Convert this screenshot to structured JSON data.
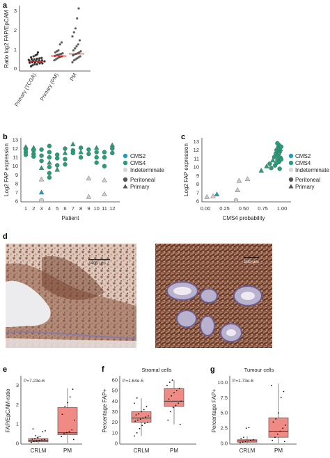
{
  "panels": {
    "a": {
      "label": "a",
      "ylabel": "Ratio log2 FAP/EpCAM",
      "yticks": [
        "0",
        "1",
        "2",
        "3"
      ],
      "categories": [
        "Primary (TCGA)",
        "Primary (PM)",
        "PM"
      ]
    },
    "b": {
      "label": "b",
      "ylabel": "Log2 FAP expression",
      "xlabel": "Patient",
      "yticks": [
        "6",
        "7",
        "8",
        "9",
        "10",
        "11",
        "12",
        "13"
      ],
      "xticks": [
        "1",
        "2",
        "3",
        "4",
        "5",
        "6",
        "7",
        "8",
        "9",
        "10",
        "11",
        "12"
      ]
    },
    "c": {
      "label": "c",
      "ylabel": "Log2 FAP expression",
      "xlabel": "CMS4 probability",
      "yticks": [
        "6",
        "7",
        "8",
        "9",
        "10",
        "11",
        "12",
        "13"
      ],
      "xticks": [
        "0.00",
        "0.25",
        "0.50",
        "0.75",
        "1.00"
      ]
    },
    "legend": {
      "colour_items": [
        "CMS2",
        "CMS4",
        "Indeterminate"
      ],
      "shape_items": [
        "Peritoneal",
        "Primary"
      ]
    },
    "d": {
      "label": "d",
      "scalebar_left": "400 μm",
      "scalebar_right": "100 μm"
    },
    "e": {
      "label": "e",
      "ylabel": "FAP/EpCAM-ratio",
      "pvalue": "P=7.23e-6",
      "yticks": [
        "0",
        "1",
        "2",
        "3"
      ],
      "categories": [
        "CRLM",
        "PM"
      ]
    },
    "f": {
      "label": "f",
      "title": "Stromal cells",
      "ylabel": "Percentage FAP+",
      "pvalue": "P=1.64e-5",
      "yticks": [
        "0",
        "10",
        "20",
        "30",
        "40",
        "50",
        "60"
      ],
      "categories": [
        "CRLM",
        "PM"
      ]
    },
    "g": {
      "label": "g",
      "title": "Tumour cells",
      "ylabel": "Percentage FAP+",
      "pvalue": "P=1.73e-6",
      "yticks": [
        "0.0",
        "2.5",
        "5.0",
        "7.5",
        "10.0"
      ],
      "categories": [
        "CRLM",
        "PM"
      ]
    }
  },
  "colors": {
    "cms2": "#1e9fc2",
    "cms4": "#23a079",
    "indeterminate": "#cccccc",
    "median_line": "#e03030",
    "box_fill": "#ef8a84",
    "tissue_dark": "#7a4a36",
    "tissue_light": "#c4a08c"
  },
  "chart_data": [
    {
      "panel": "a",
      "type": "scatter",
      "categories": [
        "Primary (TCGA)",
        "Primary (PM)",
        "PM"
      ],
      "medians": [
        0.45,
        0.72,
        0.82
      ],
      "series": [
        {
          "category": "Primary (TCGA)",
          "values": [
            0.2,
            0.25,
            0.3,
            0.3,
            0.35,
            0.35,
            0.38,
            0.4,
            0.4,
            0.42,
            0.43,
            0.45,
            0.45,
            0.46,
            0.48,
            0.5,
            0.5,
            0.52,
            0.55,
            0.55,
            0.58,
            0.6,
            0.62,
            0.65,
            0.7,
            0.75,
            0.8,
            0.9
          ]
        },
        {
          "category": "Primary (PM)",
          "values": [
            0.5,
            0.55,
            0.6,
            0.65,
            0.68,
            0.7,
            0.72,
            0.75,
            0.78,
            0.8,
            0.82,
            0.85,
            0.9,
            0.95,
            1.0,
            1.3,
            1.4
          ]
        },
        {
          "category": "PM",
          "values": [
            0.4,
            0.5,
            0.55,
            0.6,
            0.65,
            0.7,
            0.75,
            0.8,
            0.82,
            0.85,
            0.9,
            0.95,
            1.0,
            1.1,
            1.2,
            1.3,
            1.5,
            1.7,
            1.9,
            2.1,
            2.6,
            3.1
          ]
        }
      ],
      "ylim": [
        0,
        3.4
      ]
    },
    {
      "panel": "b",
      "type": "scatter",
      "ylim": [
        6,
        13
      ],
      "points": [
        {
          "x": 1,
          "y": 12.2,
          "c": "cms4",
          "s": "triangle"
        },
        {
          "x": 1,
          "y": 11.9,
          "c": "cms4",
          "s": "circle"
        },
        {
          "x": 1,
          "y": 11.6,
          "c": "cms4",
          "s": "circle"
        },
        {
          "x": 1,
          "y": 11.3,
          "c": "cms4",
          "s": "circle"
        },
        {
          "x": 2,
          "y": 12.1,
          "c": "cms4",
          "s": "triangle"
        },
        {
          "x": 2,
          "y": 11.8,
          "c": "cms4",
          "s": "circle"
        },
        {
          "x": 2,
          "y": 11.4,
          "c": "cms4",
          "s": "circle"
        },
        {
          "x": 2,
          "y": 11.1,
          "c": "cms4",
          "s": "circle"
        },
        {
          "x": 3,
          "y": 11.9,
          "c": "cms4",
          "s": "circle"
        },
        {
          "x": 3,
          "y": 11.2,
          "c": "cms4",
          "s": "circle"
        },
        {
          "x": 3,
          "y": 10.6,
          "c": "cms4",
          "s": "circle"
        },
        {
          "x": 3,
          "y": 9.8,
          "c": "cms4",
          "s": "triangle"
        },
        {
          "x": 3,
          "y": 8.5,
          "c": "indeterminate",
          "s": "triangle"
        },
        {
          "x": 3,
          "y": 7.0,
          "c": "cms2",
          "s": "triangle"
        },
        {
          "x": 3,
          "y": 6.1,
          "c": "indeterminate",
          "s": "circle"
        },
        {
          "x": 4,
          "y": 12.3,
          "c": "cms4",
          "s": "circle"
        },
        {
          "x": 4,
          "y": 11.6,
          "c": "cms4",
          "s": "circle"
        },
        {
          "x": 4,
          "y": 11.0,
          "c": "cms4",
          "s": "circle"
        },
        {
          "x": 4,
          "y": 10.4,
          "c": "cms4",
          "s": "triangle"
        },
        {
          "x": 4,
          "y": 9.9,
          "c": "cms4",
          "s": "circle"
        },
        {
          "x": 4,
          "y": 9.2,
          "c": "cms4",
          "s": "circle"
        },
        {
          "x": 4,
          "y": 8.7,
          "c": "cms4",
          "s": "circle"
        },
        {
          "x": 5,
          "y": 11.3,
          "c": "cms4",
          "s": "circle"
        },
        {
          "x": 5,
          "y": 10.9,
          "c": "cms4",
          "s": "circle"
        },
        {
          "x": 5,
          "y": 10.1,
          "c": "cms4",
          "s": "circle"
        },
        {
          "x": 5,
          "y": 9.6,
          "c": "cms4",
          "s": "triangle"
        },
        {
          "x": 6,
          "y": 12.0,
          "c": "cms4",
          "s": "circle"
        },
        {
          "x": 6,
          "y": 11.5,
          "c": "cms4",
          "s": "triangle"
        },
        {
          "x": 6,
          "y": 10.8,
          "c": "cms4",
          "s": "circle"
        },
        {
          "x": 6,
          "y": 10.2,
          "c": "cms4",
          "s": "circle"
        },
        {
          "x": 7,
          "y": 12.5,
          "c": "cms4",
          "s": "triangle"
        },
        {
          "x": 7,
          "y": 11.8,
          "c": "cms4",
          "s": "circle"
        },
        {
          "x": 7,
          "y": 11.5,
          "c": "cms4",
          "s": "circle"
        },
        {
          "x": 8,
          "y": 12.1,
          "c": "cms4",
          "s": "circle"
        },
        {
          "x": 8,
          "y": 11.6,
          "c": "cms4",
          "s": "triangle"
        },
        {
          "x": 8,
          "y": 11.0,
          "c": "cms4",
          "s": "circle"
        },
        {
          "x": 9,
          "y": 11.9,
          "c": "cms4",
          "s": "circle"
        },
        {
          "x": 9,
          "y": 11.4,
          "c": "cms4",
          "s": "circle"
        },
        {
          "x": 9,
          "y": 8.6,
          "c": "indeterminate",
          "s": "triangle"
        },
        {
          "x": 9,
          "y": 6.5,
          "c": "indeterminate",
          "s": "triangle"
        },
        {
          "x": 10,
          "y": 12.1,
          "c": "cms4",
          "s": "triangle"
        },
        {
          "x": 10,
          "y": 11.6,
          "c": "cms4",
          "s": "circle"
        },
        {
          "x": 10,
          "y": 11.0,
          "c": "cms4",
          "s": "circle"
        },
        {
          "x": 10,
          "y": 10.4,
          "c": "cms4",
          "s": "circle"
        },
        {
          "x": 11,
          "y": 11.6,
          "c": "cms4",
          "s": "circle"
        },
        {
          "x": 11,
          "y": 11.0,
          "c": "cms4",
          "s": "circle"
        },
        {
          "x": 11,
          "y": 10.0,
          "c": "cms4",
          "s": "circle"
        },
        {
          "x": 11,
          "y": 8.4,
          "c": "indeterminate",
          "s": "triangle"
        },
        {
          "x": 11,
          "y": 6.8,
          "c": "indeterminate",
          "s": "triangle"
        },
        {
          "x": 12,
          "y": 12.4,
          "c": "cms4",
          "s": "triangle"
        },
        {
          "x": 12,
          "y": 12.0,
          "c": "cms4",
          "s": "circle"
        },
        {
          "x": 12,
          "y": 11.5,
          "c": "cms4",
          "s": "circle"
        }
      ]
    },
    {
      "panel": "c",
      "type": "scatter",
      "ylim": [
        6,
        13.2
      ],
      "xlim": [
        0,
        1
      ],
      "points": [
        {
          "x": 0.02,
          "y": 6.5,
          "c": "indeterminate",
          "s": "triangle"
        },
        {
          "x": 0.1,
          "y": 6.6,
          "c": "indeterminate",
          "s": "triangle"
        },
        {
          "x": 0.15,
          "y": 6.8,
          "c": "cms2",
          "s": "triangle"
        },
        {
          "x": 0.4,
          "y": 6.1,
          "c": "indeterminate",
          "s": "circle"
        },
        {
          "x": 0.42,
          "y": 7.3,
          "c": "indeterminate",
          "s": "triangle"
        },
        {
          "x": 0.44,
          "y": 8.4,
          "c": "indeterminate",
          "s": "triangle"
        },
        {
          "x": 0.55,
          "y": 8.6,
          "c": "indeterminate",
          "s": "triangle"
        },
        {
          "x": 0.73,
          "y": 9.6,
          "c": "cms4",
          "s": "triangle"
        },
        {
          "x": 0.8,
          "y": 10.1,
          "c": "cms4",
          "s": "triangle"
        },
        {
          "x": 0.84,
          "y": 10.4,
          "c": "cms4",
          "s": "circle"
        },
        {
          "x": 0.86,
          "y": 9.9,
          "c": "cms4",
          "s": "circle"
        },
        {
          "x": 0.88,
          "y": 10.8,
          "c": "cms4",
          "s": "triangle"
        },
        {
          "x": 0.9,
          "y": 11.2,
          "c": "cms4",
          "s": "circle"
        },
        {
          "x": 0.91,
          "y": 10.2,
          "c": "cms4",
          "s": "circle"
        },
        {
          "x": 0.92,
          "y": 11.6,
          "c": "cms4",
          "s": "circle"
        },
        {
          "x": 0.93,
          "y": 12.0,
          "c": "cms4",
          "s": "circle"
        },
        {
          "x": 0.94,
          "y": 11.0,
          "c": "cms4",
          "s": "triangle"
        },
        {
          "x": 0.95,
          "y": 12.3,
          "c": "cms4",
          "s": "circle"
        },
        {
          "x": 0.95,
          "y": 11.4,
          "c": "cms4",
          "s": "circle"
        },
        {
          "x": 0.96,
          "y": 10.6,
          "c": "cms4",
          "s": "circle"
        },
        {
          "x": 0.96,
          "y": 12.6,
          "c": "cms4",
          "s": "circle"
        },
        {
          "x": 0.97,
          "y": 11.8,
          "c": "cms4",
          "s": "circle"
        },
        {
          "x": 0.97,
          "y": 9.8,
          "c": "cms4",
          "s": "circle"
        },
        {
          "x": 0.98,
          "y": 12.1,
          "c": "cms4",
          "s": "triangle"
        },
        {
          "x": 0.98,
          "y": 11.1,
          "c": "cms4",
          "s": "circle"
        },
        {
          "x": 0.99,
          "y": 12.4,
          "c": "cms4",
          "s": "circle"
        },
        {
          "x": 0.99,
          "y": 10.9,
          "c": "cms4",
          "s": "circle"
        },
        {
          "x": 0.93,
          "y": 10.5,
          "c": "cms4",
          "s": "circle"
        },
        {
          "x": 0.94,
          "y": 12.8,
          "c": "cms4",
          "s": "circle"
        },
        {
          "x": 0.96,
          "y": 11.7,
          "c": "cms4",
          "s": "triangle"
        }
      ]
    },
    {
      "panel": "e",
      "type": "box",
      "categories": [
        "CRLM",
        "PM"
      ],
      "ylim": [
        0,
        3.4
      ],
      "boxes": [
        {
          "category": "CRLM",
          "min": 0.0,
          "q1": 0.08,
          "median": 0.15,
          "q3": 0.25,
          "max": 0.4
        },
        {
          "category": "PM",
          "min": 0.0,
          "q1": 0.45,
          "median": 0.55,
          "q3": 1.85,
          "max": 2.85
        }
      ],
      "points": {
        "CRLM": [
          0.05,
          0.1,
          0.12,
          0.15,
          0.18,
          0.2,
          0.22,
          0.25,
          0.3,
          0.35,
          0.6,
          0.65,
          0.75,
          0.4
        ],
        "PM": [
          0.2,
          0.35,
          0.5,
          0.55,
          0.6,
          0.7,
          1.2,
          1.5,
          1.9,
          2.1,
          2.4,
          2.8
        ]
      }
    },
    {
      "panel": "f",
      "type": "box",
      "categories": [
        "CRLM",
        "PM"
      ],
      "ylim": [
        0,
        65
      ],
      "boxes": [
        {
          "category": "CRLM",
          "min": 7,
          "q1": 20,
          "median": 24,
          "q3": 30,
          "max": 43
        },
        {
          "category": "PM",
          "min": 18,
          "q1": 35,
          "median": 40,
          "q3": 52,
          "max": 60
        }
      ],
      "points": {
        "CRLM": [
          7,
          10,
          14,
          17,
          19,
          20,
          21,
          22,
          23,
          24,
          25,
          26,
          27,
          28,
          30,
          32,
          35,
          38,
          43
        ],
        "PM": [
          18,
          22,
          30,
          34,
          36,
          38,
          40,
          42,
          45,
          48,
          50,
          52,
          55,
          58,
          60
        ]
      }
    },
    {
      "panel": "g",
      "type": "box",
      "categories": [
        "CRLM",
        "PM"
      ],
      "ylim": [
        0,
        10.5
      ],
      "boxes": [
        {
          "category": "CRLM",
          "min": 0,
          "q1": 0.2,
          "median": 0.4,
          "q3": 0.6,
          "max": 1.2
        },
        {
          "category": "PM",
          "min": 0,
          "q1": 1.0,
          "median": 2.0,
          "q3": 4.2,
          "max": 9.8
        }
      ],
      "points": {
        "CRLM": [
          0.1,
          0.2,
          0.3,
          0.4,
          0.5,
          0.6,
          0.8,
          1.0,
          2.5,
          2.6
        ],
        "PM": [
          0.3,
          0.5,
          1.0,
          1.5,
          2.0,
          2.5,
          3.0,
          3.5,
          4.0,
          5.0,
          7.5,
          8.5,
          9.5
        ]
      }
    }
  ]
}
